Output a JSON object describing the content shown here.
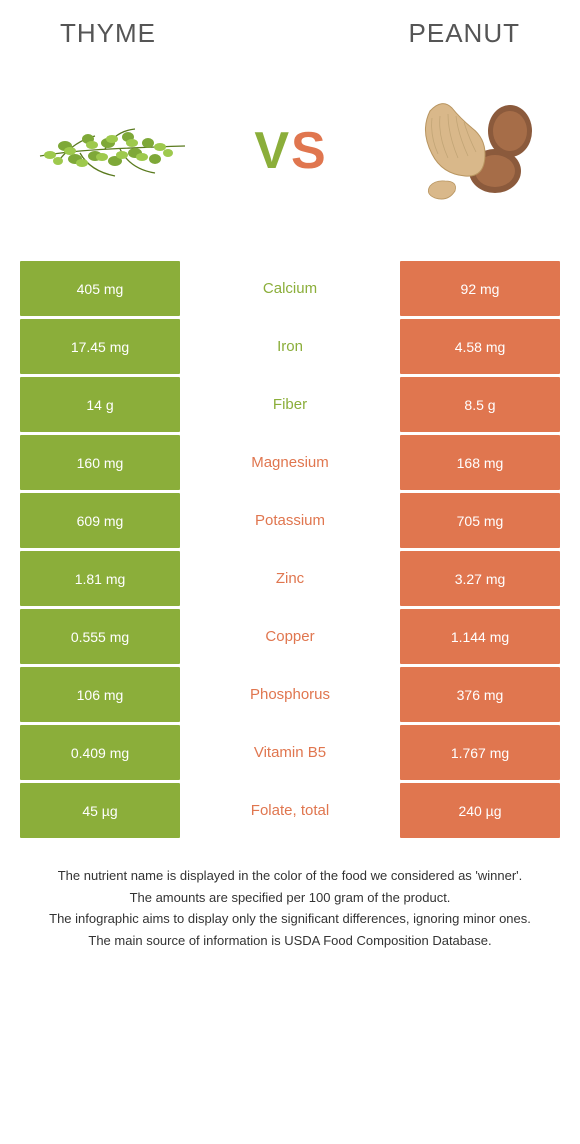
{
  "foods": {
    "left": {
      "name": "Thyme",
      "color": "#8bae3a"
    },
    "right": {
      "name": "Peanut",
      "color": "#e0764f"
    }
  },
  "vs": {
    "v": "V",
    "s": "S"
  },
  "colors": {
    "left_bar": "#8bae3a",
    "right_bar": "#e0764f",
    "mid_left_text": "#8bae3a",
    "mid_right_text": "#e0764f"
  },
  "rows": [
    {
      "nutrient": "Calcium",
      "left": "405 mg",
      "right": "92 mg",
      "winner": "left"
    },
    {
      "nutrient": "Iron",
      "left": "17.45 mg",
      "right": "4.58 mg",
      "winner": "left"
    },
    {
      "nutrient": "Fiber",
      "left": "14 g",
      "right": "8.5 g",
      "winner": "left"
    },
    {
      "nutrient": "Magnesium",
      "left": "160 mg",
      "right": "168 mg",
      "winner": "right"
    },
    {
      "nutrient": "Potassium",
      "left": "609 mg",
      "right": "705 mg",
      "winner": "right"
    },
    {
      "nutrient": "Zinc",
      "left": "1.81 mg",
      "right": "3.27 mg",
      "winner": "right"
    },
    {
      "nutrient": "Copper",
      "left": "0.555 mg",
      "right": "1.144 mg",
      "winner": "right"
    },
    {
      "nutrient": "Phosphorus",
      "left": "106 mg",
      "right": "376 mg",
      "winner": "right"
    },
    {
      "nutrient": "Vitamin B5",
      "left": "0.409 mg",
      "right": "1.767 mg",
      "winner": "right"
    },
    {
      "nutrient": "Folate, total",
      "left": "45 µg",
      "right": "240 µg",
      "winner": "right"
    }
  ],
  "footer": [
    "The nutrient name is displayed in the color of the food we considered as 'winner'.",
    "The amounts are specified per 100 gram of the product.",
    "The infographic aims to display only the significant differences, ignoring minor ones.",
    "The main source of information is USDA Food Composition Database."
  ]
}
